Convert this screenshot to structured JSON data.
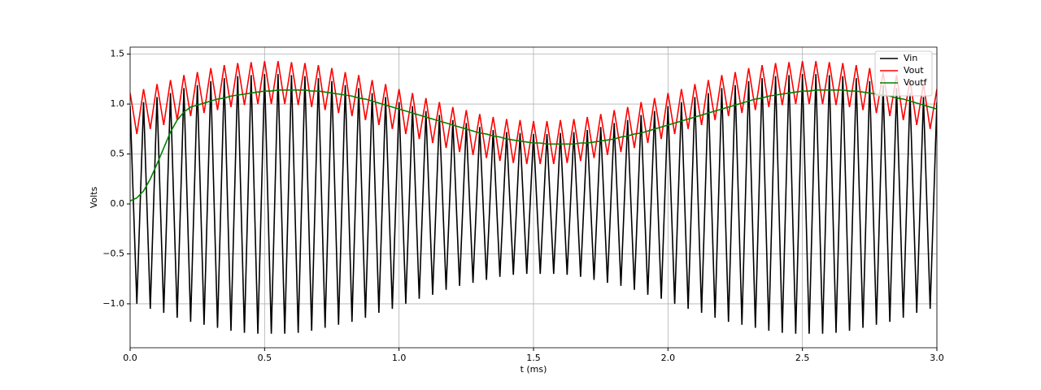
{
  "chart_data": {
    "type": "line",
    "xlabel": "t (ms)",
    "ylabel": "Volts",
    "xlim": [
      0,
      3
    ],
    "ylim": [
      -1.44,
      1.57
    ],
    "xticks": [
      {
        "value": 0,
        "label": "0.0"
      },
      {
        "value": 0.5,
        "label": "0.5"
      },
      {
        "value": 1,
        "label": "1.0"
      },
      {
        "value": 1.5,
        "label": "1.5"
      },
      {
        "value": 2,
        "label": "2.0"
      },
      {
        "value": 2.5,
        "label": "2.5"
      },
      {
        "value": 3,
        "label": "3.0"
      }
    ],
    "yticks": [
      {
        "value": -1,
        "label": "−1.0"
      },
      {
        "value": -0.5,
        "label": "−0.5"
      },
      {
        "value": 0,
        "label": "0.0"
      },
      {
        "value": 0.5,
        "label": "0.5"
      },
      {
        "value": 1,
        "label": "1.0"
      },
      {
        "value": 1.5,
        "label": "1.5"
      }
    ],
    "grid": true,
    "legend": "upper right",
    "x": [
      0,
      0.025,
      0.05,
      0.075,
      0.1,
      0.125,
      0.15,
      0.175,
      0.2,
      0.225,
      0.25,
      0.275,
      0.3,
      0.325,
      0.35,
      0.375,
      0.4,
      0.425,
      0.45,
      0.475,
      0.5,
      0.525,
      0.55,
      0.575,
      0.6,
      0.625,
      0.65,
      0.675,
      0.7,
      0.725,
      0.75,
      0.775,
      0.8,
      0.825,
      0.85,
      0.875,
      0.9,
      0.925,
      0.95,
      0.975,
      1,
      1.025,
      1.05,
      1.075,
      1.1,
      1.125,
      1.15,
      1.175,
      1.2,
      1.225,
      1.25,
      1.275,
      1.3,
      1.325,
      1.35,
      1.375,
      1.4,
      1.425,
      1.45,
      1.475,
      1.5,
      1.525,
      1.55,
      1.575,
      1.6,
      1.625,
      1.65,
      1.675,
      1.7,
      1.725,
      1.75,
      1.775,
      1.8,
      1.825,
      1.85,
      1.875,
      1.9,
      1.925,
      1.95,
      1.975,
      2,
      2.025,
      2.05,
      2.075,
      2.1,
      2.125,
      2.15,
      2.175,
      2.2,
      2.225,
      2.25,
      2.275,
      2.3,
      2.325,
      2.35,
      2.375,
      2.4,
      2.425,
      2.45,
      2.475,
      2.5,
      2.525,
      2.55,
      2.575,
      2.6,
      2.625,
      2.65,
      2.675,
      2.7,
      2.725,
      2.75,
      2.775,
      2.8,
      2.825,
      2.85,
      2.875,
      2.9,
      2.925,
      2.95,
      2.975,
      3
    ],
    "series": [
      {
        "name": "Vin",
        "color": "#000000",
        "values": [
          0.98,
          -1.0,
          1.02,
          -1.05,
          1.07,
          -1.09,
          1.11,
          -1.14,
          1.16,
          -1.18,
          1.19,
          -1.21,
          1.23,
          -1.24,
          1.26,
          -1.27,
          1.28,
          -1.29,
          1.29,
          -1.3,
          1.3,
          -1.3,
          1.3,
          -1.3,
          1.29,
          -1.29,
          1.28,
          -1.27,
          1.26,
          -1.24,
          1.23,
          -1.21,
          1.19,
          -1.18,
          1.16,
          -1.14,
          1.11,
          -1.09,
          1.07,
          -1.05,
          1.02,
          -1.0,
          0.98,
          -0.95,
          0.93,
          -0.91,
          0.89,
          -0.86,
          0.84,
          -0.82,
          0.81,
          -0.79,
          0.77,
          -0.76,
          0.74,
          -0.73,
          0.72,
          -0.71,
          0.71,
          -0.7,
          0.7,
          -0.7,
          0.7,
          -0.7,
          0.71,
          -0.71,
          0.72,
          -0.73,
          0.74,
          -0.76,
          0.77,
          -0.79,
          0.81,
          -0.82,
          0.84,
          -0.86,
          0.89,
          -0.91,
          0.93,
          -0.95,
          0.98,
          -1.0,
          1.02,
          -1.05,
          1.07,
          -1.09,
          1.11,
          -1.14,
          1.16,
          -1.18,
          1.19,
          -1.21,
          1.23,
          -1.24,
          1.26,
          -1.27,
          1.28,
          -1.29,
          1.29,
          -1.3,
          1.3,
          -1.3,
          1.3,
          -1.3,
          1.29,
          -1.29,
          1.28,
          -1.27,
          1.26,
          -1.24,
          1.23,
          -1.21,
          1.19,
          -1.18,
          1.16,
          -1.14,
          1.11,
          -1.09,
          1.07,
          -1.05,
          1.02
        ]
      },
      {
        "name": "Vout",
        "color": "#ff0000",
        "values": [
          1.11,
          0.7,
          1.15,
          0.75,
          1.2,
          0.79,
          1.24,
          0.84,
          1.29,
          0.88,
          1.32,
          0.91,
          1.36,
          0.94,
          1.39,
          0.97,
          1.41,
          0.99,
          1.42,
          1.0,
          1.43,
          1.0,
          1.43,
          1.0,
          1.42,
          0.99,
          1.41,
          0.97,
          1.39,
          0.94,
          1.36,
          0.91,
          1.32,
          0.88,
          1.29,
          0.84,
          1.24,
          0.79,
          1.2,
          0.75,
          1.15,
          0.7,
          1.11,
          0.65,
          1.06,
          0.61,
          1.02,
          0.56,
          0.97,
          0.52,
          0.94,
          0.49,
          0.9,
          0.46,
          0.87,
          0.43,
          0.85,
          0.41,
          0.84,
          0.4,
          0.83,
          0.4,
          0.83,
          0.4,
          0.84,
          0.41,
          0.85,
          0.43,
          0.87,
          0.46,
          0.9,
          0.49,
          0.94,
          0.52,
          0.97,
          0.56,
          1.02,
          0.61,
          1.06,
          0.65,
          1.11,
          0.7,
          1.15,
          0.75,
          1.2,
          0.79,
          1.24,
          0.84,
          1.29,
          0.88,
          1.32,
          0.91,
          1.36,
          0.94,
          1.39,
          0.97,
          1.41,
          0.99,
          1.42,
          1.0,
          1.43,
          1.0,
          1.43,
          1.0,
          1.42,
          0.99,
          1.41,
          0.97,
          1.39,
          0.94,
          1.36,
          0.91,
          1.32,
          0.88,
          1.29,
          0.84,
          1.24,
          0.79,
          1.2,
          0.75,
          1.15
        ]
      },
      {
        "name": "Voutf",
        "color": "#008000",
        "values": [
          0.03,
          0.06,
          0.13,
          0.25,
          0.4,
          0.56,
          0.72,
          0.84,
          0.92,
          0.97,
          0.99,
          1.01,
          1.03,
          1.05,
          1.06,
          1.08,
          1.09,
          1.1,
          1.11,
          1.12,
          1.13,
          1.13,
          1.14,
          1.14,
          1.14,
          1.14,
          1.14,
          1.13,
          1.13,
          1.12,
          1.11,
          1.1,
          1.09,
          1.08,
          1.06,
          1.05,
          1.03,
          1.01,
          0.99,
          0.97,
          0.95,
          0.93,
          0.91,
          0.89,
          0.87,
          0.85,
          0.83,
          0.81,
          0.79,
          0.77,
          0.75,
          0.73,
          0.71,
          0.7,
          0.68,
          0.67,
          0.65,
          0.64,
          0.63,
          0.62,
          0.61,
          0.61,
          0.6,
          0.6,
          0.6,
          0.6,
          0.6,
          0.61,
          0.61,
          0.62,
          0.63,
          0.64,
          0.65,
          0.67,
          0.68,
          0.7,
          0.71,
          0.73,
          0.75,
          0.77,
          0.79,
          0.81,
          0.83,
          0.85,
          0.87,
          0.89,
          0.91,
          0.93,
          0.95,
          0.97,
          0.99,
          1.01,
          1.03,
          1.05,
          1.06,
          1.08,
          1.09,
          1.1,
          1.11,
          1.12,
          1.13,
          1.13,
          1.14,
          1.14,
          1.14,
          1.14,
          1.14,
          1.13,
          1.13,
          1.12,
          1.11,
          1.1,
          1.09,
          1.08,
          1.06,
          1.05,
          1.03,
          1.01,
          0.99,
          0.97,
          0.95
        ]
      }
    ]
  }
}
